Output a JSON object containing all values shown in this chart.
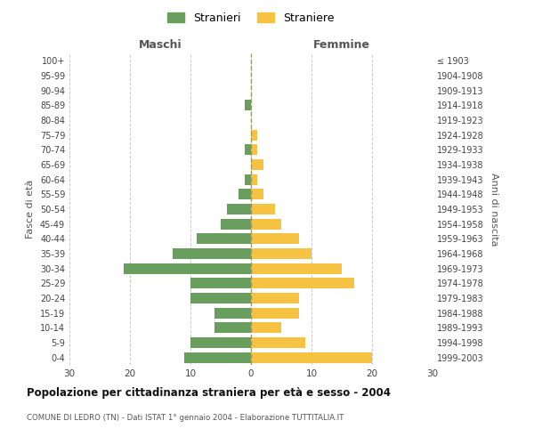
{
  "age_groups": [
    "0-4",
    "5-9",
    "10-14",
    "15-19",
    "20-24",
    "25-29",
    "30-34",
    "35-39",
    "40-44",
    "45-49",
    "50-54",
    "55-59",
    "60-64",
    "65-69",
    "70-74",
    "75-79",
    "80-84",
    "85-89",
    "90-94",
    "95-99",
    "100+"
  ],
  "birth_years": [
    "1999-2003",
    "1994-1998",
    "1989-1993",
    "1984-1988",
    "1979-1983",
    "1974-1978",
    "1969-1973",
    "1964-1968",
    "1959-1963",
    "1954-1958",
    "1949-1953",
    "1944-1948",
    "1939-1943",
    "1934-1938",
    "1929-1933",
    "1924-1928",
    "1919-1923",
    "1914-1918",
    "1909-1913",
    "1904-1908",
    "≤ 1903"
  ],
  "maschi": [
    11,
    10,
    6,
    6,
    10,
    10,
    21,
    13,
    9,
    5,
    4,
    2,
    1,
    0,
    1,
    0,
    0,
    1,
    0,
    0,
    0
  ],
  "femmine": [
    20,
    9,
    5,
    8,
    8,
    17,
    15,
    10,
    8,
    5,
    4,
    2,
    1,
    2,
    1,
    1,
    0,
    0,
    0,
    0,
    0
  ],
  "maschi_color": "#6a9e5e",
  "femmine_color": "#f5c242",
  "title": "Popolazione per cittadinanza straniera per età e sesso - 2004",
  "subtitle": "COMUNE DI LEDRO (TN) - Dati ISTAT 1° gennaio 2004 - Elaborazione TUTTITALIA.IT",
  "xlabel_left": "Maschi",
  "xlabel_right": "Femmine",
  "ylabel_left": "Fasce di età",
  "ylabel_right": "Anni di nascita",
  "xlim": 30,
  "legend_stranieri": "Stranieri",
  "legend_straniere": "Straniere",
  "bg_color": "#ffffff",
  "grid_color": "#cccccc",
  "bar_height": 0.72
}
